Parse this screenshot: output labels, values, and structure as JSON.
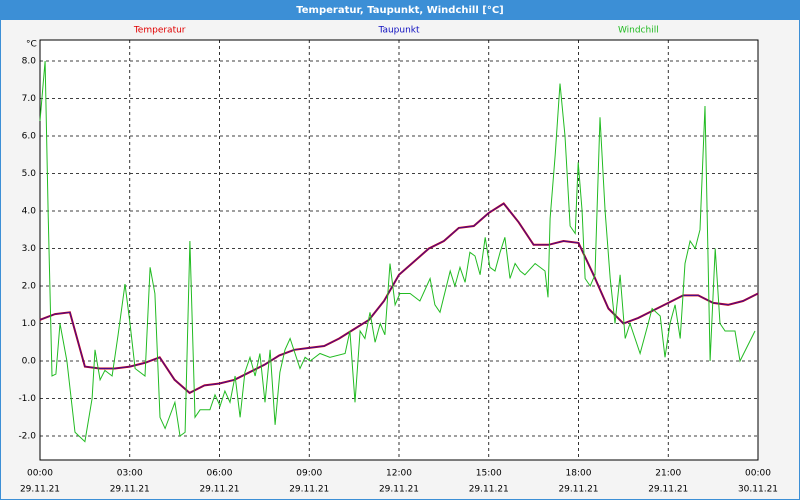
{
  "chart_data": {
    "type": "line",
    "title": "Temperatur, Taupunkt, Windchill [°C]",
    "y_label": "°C",
    "grid": true,
    "xlim": [
      0,
      24
    ],
    "xticks": [
      {
        "value": 0,
        "label": "00:00"
      },
      {
        "value": 3,
        "label": "03:00"
      },
      {
        "value": 6,
        "label": "06:00"
      },
      {
        "value": 9,
        "label": "09:00"
      },
      {
        "value": 12,
        "label": "12:00"
      },
      {
        "value": 15,
        "label": "15:00"
      },
      {
        "value": 18,
        "label": "18:00"
      },
      {
        "value": 21,
        "label": "21:00"
      },
      {
        "value": 24,
        "label": "00:00"
      }
    ],
    "xtick_dates": [
      "29.11.21",
      "29.11.21",
      "29.11.21",
      "29.11.21",
      "29.11.21",
      "29.11.21",
      "29.11.21",
      "29.11.21",
      "30.11.21"
    ],
    "ylim": [
      -2.64,
      8.56
    ],
    "yticks": [
      {
        "value": -2,
        "label": "-2.0"
      },
      {
        "value": -1,
        "label": "-1.0"
      },
      {
        "value": 0,
        "label": "0.0"
      },
      {
        "value": 1,
        "label": "1.0"
      },
      {
        "value": 2,
        "label": "2.0"
      },
      {
        "value": 3,
        "label": "3.0"
      },
      {
        "value": 4,
        "label": "4.0"
      },
      {
        "value": 5,
        "label": "5.0"
      },
      {
        "value": 6,
        "label": "6.0"
      },
      {
        "value": 7,
        "label": "7.0"
      },
      {
        "value": 8,
        "label": "8.0"
      }
    ],
    "series": [
      {
        "name": "Temperatur",
        "color": "#e00000",
        "x": [
          0,
          0.5,
          1,
          1.5,
          2,
          2.5,
          3,
          3.5,
          4,
          4.5,
          5,
          5.5,
          6,
          6.5,
          7,
          7.5,
          8,
          8.5,
          9,
          9.5,
          10,
          10.5,
          11,
          11.5,
          12,
          12.5,
          13,
          13.5,
          14,
          14.5,
          15,
          15.5,
          16,
          16.5,
          17,
          17.5,
          18,
          18.5,
          19,
          19.5,
          20,
          20.5,
          21,
          21.5,
          22,
          22.5,
          23,
          23.5,
          24
        ],
        "values": [
          1.1,
          1.25,
          1.3,
          -0.15,
          -0.2,
          -0.2,
          -0.15,
          -0.05,
          0.1,
          -0.5,
          -0.85,
          -0.65,
          -0.6,
          -0.5,
          -0.3,
          -0.1,
          0.15,
          0.3,
          0.35,
          0.4,
          0.6,
          0.85,
          1.1,
          1.6,
          2.3,
          2.65,
          3.0,
          3.2,
          3.55,
          3.6,
          3.95,
          4.2,
          3.7,
          3.1,
          3.1,
          3.2,
          3.15,
          2.3,
          1.4,
          1.0,
          1.15,
          1.35,
          1.55,
          1.75,
          1.75,
          1.55,
          1.5,
          1.6,
          1.8
        ]
      },
      {
        "name": "Taupunkt",
        "color": "#1010c0",
        "x": [
          0,
          0.5,
          1,
          1.5,
          2,
          2.5,
          3,
          3.5,
          4,
          4.5,
          5,
          5.5,
          6,
          6.5,
          7,
          7.5,
          8,
          8.5,
          9,
          9.5,
          10,
          10.5,
          11,
          11.5,
          12,
          12.5,
          13,
          13.5,
          14,
          14.5,
          15,
          15.5,
          16,
          16.5,
          17,
          17.5,
          18,
          18.5,
          19,
          19.5,
          20,
          20.5,
          21,
          21.5,
          22,
          22.5,
          23,
          23.5,
          24
        ],
        "values": [
          1.1,
          1.25,
          1.3,
          -0.15,
          -0.2,
          -0.2,
          -0.15,
          -0.05,
          0.1,
          -0.5,
          -0.85,
          -0.65,
          -0.6,
          -0.5,
          -0.3,
          -0.1,
          0.15,
          0.3,
          0.35,
          0.4,
          0.6,
          0.85,
          1.1,
          1.6,
          2.3,
          2.65,
          3.0,
          3.2,
          3.55,
          3.6,
          3.95,
          4.2,
          3.7,
          3.1,
          3.1,
          3.2,
          3.15,
          2.3,
          1.4,
          1.0,
          1.15,
          1.35,
          1.55,
          1.75,
          1.75,
          1.55,
          1.5,
          1.6,
          1.8
        ]
      },
      {
        "name": "Windchill",
        "color": "#22bb22",
        "x": [
          0,
          0.17,
          0.27,
          0.4,
          0.53,
          0.67,
          0.9,
          1.17,
          1.5,
          1.74,
          1.84,
          2.01,
          2.17,
          2.41,
          2.61,
          2.84,
          3.01,
          3.18,
          3.51,
          3.68,
          3.84,
          4.01,
          4.18,
          4.51,
          4.68,
          4.85,
          5.01,
          5.18,
          5.35,
          5.68,
          5.85,
          6.02,
          6.18,
          6.35,
          6.52,
          6.69,
          6.85,
          7.02,
          7.19,
          7.35,
          7.52,
          7.69,
          7.86,
          8.02,
          8.19,
          8.36,
          8.69,
          8.86,
          9.03,
          9.36,
          9.69,
          10.2,
          10.36,
          10.53,
          10.7,
          10.86,
          11.03,
          11.2,
          11.37,
          11.53,
          11.7,
          11.87,
          12.03,
          12.37,
          12.7,
          13.04,
          13.2,
          13.37,
          13.71,
          13.87,
          14.04,
          14.21,
          14.37,
          14.54,
          14.71,
          14.88,
          15.04,
          15.21,
          15.38,
          15.54,
          15.71,
          15.88,
          16.05,
          16.21,
          16.55,
          16.88,
          16.98,
          17.05,
          17.22,
          17.38,
          17.55,
          17.72,
          17.89,
          17.99,
          18.12,
          18.22,
          18.39,
          18.55,
          18.72,
          18.89,
          19.06,
          19.22,
          19.39,
          19.56,
          19.72,
          20.06,
          20.33,
          20.46,
          20.73,
          20.89,
          21.06,
          21.23,
          21.4,
          21.56,
          21.73,
          21.9,
          22.06,
          22.23,
          22.4,
          22.57,
          22.73,
          22.9,
          23.23,
          23.4,
          23.9
        ],
        "values": [
          6.4,
          8.0,
          4.0,
          -0.4,
          -0.35,
          1.0,
          0.0,
          -1.9,
          -2.15,
          -1.0,
          0.3,
          -0.5,
          -0.25,
          -0.4,
          0.7,
          2.05,
          1.0,
          -0.2,
          -0.4,
          2.5,
          1.8,
          -1.5,
          -1.8,
          -1.1,
          -2.0,
          -1.9,
          3.2,
          -1.5,
          -1.3,
          -1.3,
          -0.9,
          -1.2,
          -0.8,
          -1.1,
          -0.4,
          -1.5,
          -0.3,
          0.1,
          -0.4,
          0.2,
          -1.1,
          0.3,
          -1.7,
          -0.3,
          0.3,
          0.6,
          -0.2,
          0.1,
          0.0,
          0.2,
          0.1,
          0.2,
          0.8,
          -1.1,
          0.8,
          0.6,
          1.3,
          0.5,
          1.0,
          0.7,
          2.6,
          1.5,
          1.8,
          1.8,
          1.6,
          2.2,
          1.5,
          1.3,
          2.4,
          2.0,
          2.5,
          2.1,
          2.9,
          2.8,
          2.3,
          3.3,
          2.5,
          2.4,
          2.9,
          3.3,
          2.2,
          2.6,
          2.4,
          2.3,
          2.6,
          2.4,
          1.7,
          3.8,
          5.5,
          7.4,
          6.0,
          3.6,
          3.4,
          5.3,
          4.0,
          2.2,
          2.0,
          2.3,
          6.5,
          4.0,
          2.2,
          1.0,
          2.3,
          0.6,
          1.0,
          0.2,
          1.0,
          1.4,
          1.2,
          0.1,
          1.0,
          1.5,
          0.6,
          2.6,
          3.2,
          3.0,
          3.5,
          6.8,
          0.0,
          3.0,
          1.0,
          0.8,
          0.8,
          0.0,
          0.8
        ]
      }
    ]
  }
}
